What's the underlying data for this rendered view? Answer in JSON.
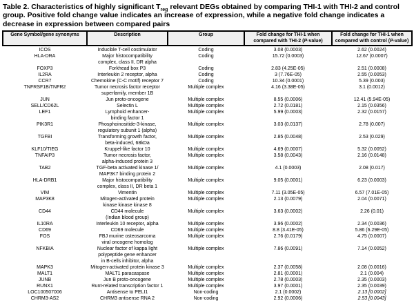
{
  "title": {
    "prefix": "Table 2. Characteristics of highly significant T",
    "subscript": "reg",
    "suffix": " relevant DEGs obtained by comparing THI-1 with THI-2 and control group. Positive fold change value indicates an increase of expression, while a negative fold change indicates a decrease in expression between compared pairs"
  },
  "table": {
    "columns": [
      {
        "label": "Gene Symbol/gene synonyms"
      },
      {
        "label": "Description"
      },
      {
        "label": "Group"
      },
      {
        "label_pre": "Fold change for THI-1 when compared with THI-2 (",
        "label_italic": "P",
        "label_post": "-value)"
      },
      {
        "label_pre": "Fold change for THI-1 when compared with control (",
        "label_italic": "P",
        "label_post": "-value)"
      }
    ],
    "rows": [
      {
        "gene": "ICOS",
        "description": [
          "Inducible T-cell costimulator"
        ],
        "group": "Coding",
        "fc_thi2": "3.08 (0.0003)",
        "fc_control": "2.62 (0.0024)"
      },
      {
        "gene": "HLA-DRA",
        "description": [
          "Major histocompatibility",
          "complex, class II, DR alpha"
        ],
        "group": "Coding",
        "fc_thi2": "15.72 (0.0003)",
        "fc_control": "12.67 (0.0007)"
      },
      {
        "gene": "FOXP3",
        "description": [
          "Forkhead box P3"
        ],
        "group": "Coding",
        "fc_thi2": "2.83 (4.25E-05)",
        "fc_control": "2.51 (0.0008)"
      },
      {
        "gene": "IL2RA",
        "description": [
          "Interleukin 2 receptor, alpha"
        ],
        "group": "Coding",
        "fc_thi2": "3 (7.76E-05)",
        "fc_control": "2.55 (0.0053)"
      },
      {
        "gene": "CCR7",
        "description": [
          "Chemokine (C-C motif) receptor 7"
        ],
        "group": "Coding",
        "fc_thi2": "10.34 (0.0001)",
        "fc_control": "5.39 (0.003)"
      },
      {
        "gene": "TNFRSF1B/TNFR2",
        "description": [
          "Tumor necrosis factor receptor",
          "superfamily, member 1B"
        ],
        "group": "Multiple complex",
        "fc_thi2": "4.16 (3.38E-05)",
        "fc_control": "3.1 (0.0012)"
      },
      {
        "gene": "JUN",
        "description": [
          "Jun proto-oncogene"
        ],
        "group": "Multiple complex",
        "fc_thi2": "8.55 (0.0006)",
        "fc_control": "12.41 (5.94E-05)"
      },
      {
        "gene": "SELL/CD62L",
        "description": [
          "Selectin L"
        ],
        "group": "Multiple complex",
        "fc_thi2": "2.72 (0.0181)",
        "fc_control": "2.15 (0.0356)"
      },
      {
        "gene": "LEF1",
        "description": [
          "Lymphoid enhancer-",
          "binding factor 1"
        ],
        "group": "Multiple complex",
        "fc_thi2": "5.99 (0.0003)",
        "fc_control": "2.32 (0.0157)"
      },
      {
        "gene": "PIK3R1",
        "description": [
          "Phosphoinositide-3-kinase,",
          "regulatory subunit 1 (alpha)"
        ],
        "group": "Multiple complex",
        "fc_thi2": "3.03 (0.0137)",
        "fc_control": "2.78 (0.007)"
      },
      {
        "gene": "TGFBI",
        "description": [
          "Transforming growth factor,",
          "beta-induced, 68kDa"
        ],
        "group": "Multiple complex",
        "fc_thi2": "2.85 (0.0048)",
        "fc_control": "2.53 (0.029)"
      },
      {
        "gene": "KLF10/TIEG",
        "description": [
          "Kruppel-like factor 10"
        ],
        "group": "Multiple complex",
        "fc_thi2": "4.69 (0.0007)",
        "fc_control": "5.32 (0.0052)"
      },
      {
        "gene": "TNFAIP3",
        "description": [
          "Tumor necrosis factor,",
          "alpha-induced protein 3"
        ],
        "group": "Multiple complex",
        "fc_thi2": "3.58 (0.0043)",
        "fc_control": "2.16 (0.0148)"
      },
      {
        "gene": "TAB2",
        "description": [
          "TGF-beta activated kinase 1/",
          "MAP3K7 binding protein 2"
        ],
        "group": "Multiple complex",
        "fc_thi2": "4.1 (0.0003)",
        "fc_control": "2.08 (0.017)"
      },
      {
        "gene": "HLA-DRB1",
        "description": [
          "Major histocompatibility",
          "complex, class II, DR beta 1"
        ],
        "group": "Multiple complex",
        "fc_thi2": "9.05 (0.0001)",
        "fc_control": "6.23 (0.0003)"
      },
      {
        "gene": "VIM",
        "description": [
          "Vimentin"
        ],
        "group": "Multiple complex",
        "fc_thi2": "7.11 (3.05E-05)",
        "fc_control": "6.57 (7.01E-05)"
      },
      {
        "gene": "MAP3K8",
        "description": [
          "Mitogen-activated protein",
          "kinase kinase kinase 8"
        ],
        "group": "Multiple complex",
        "fc_thi2": "2.13 (0.0079)",
        "fc_control": "2.04 (0.0071)"
      },
      {
        "gene": "CD44",
        "description": [
          "CD44 molecule",
          "(Indian blood group)"
        ],
        "group": "Multiple complex",
        "fc_thi2": "3.63 (0.0002)",
        "fc_control": "2.26 (0.01)"
      },
      {
        "gene": "IL10RA",
        "description": [
          "Interleukin 10 receptor, alpha"
        ],
        "group": "Multiple complex",
        "fc_thi2": "3.96 (0.0002)",
        "fc_control": "2.34 (0.0036)"
      },
      {
        "gene": "CD69",
        "description": [
          "CD69 molecule"
        ],
        "group": "Multiple complex",
        "fc_thi2": "8.8 (3.41E-05)",
        "fc_control": "5.86 (6.29E-05)"
      },
      {
        "gene": "FOS",
        "description": [
          "FBJ murine osteosarcoma",
          "viral oncogene homolog"
        ],
        "group": "Multiple complex",
        "fc_thi2": "2.76 (0.0179)",
        "fc_control": "4.75 (0.0007)"
      },
      {
        "gene": "NFKBIA",
        "description": [
          "Nuclear factor of kappa light",
          "polypeptide gene enhancer",
          "in B-cells inhibitor, alpha"
        ],
        "group": "Multiple complex",
        "fc_thi2": "7.86 (0.0091)",
        "fc_control": "7.14 (0.0052)"
      },
      {
        "gene": "MAPK3",
        "description": [
          "Mitogen-activated protein kinase 3"
        ],
        "group": "Multiple complex",
        "fc_thi2": "2.37 (0.0058)",
        "fc_control": "2.08 (0.0016)"
      },
      {
        "gene": "MALT1",
        "description": [
          "MALT1 paracaspase"
        ],
        "group": "Multiple complex",
        "fc_thi2": "2.81 (0.0001)",
        "fc_control": "2.1 (0.004)"
      },
      {
        "gene": "JUNB",
        "description": [
          "Jun B proto-oncogene"
        ],
        "group": "Multiple complex",
        "fc_thi2": "2.78 (0.0003)",
        "fc_control": "2.35 (0.0003)"
      },
      {
        "gene": "RUNX1",
        "description": [
          "Runt-related transcription factor 1"
        ],
        "group": "Multiple complex",
        "fc_thi2": "3.97 (0.0001)",
        "fc_control": "2.35 (0.0039)"
      },
      {
        "gene": "LOC100507006",
        "description": [
          "Antisense to PELI1"
        ],
        "group": "Non-coding",
        "fc_thi2": "2.1 (0.0002)",
        "fc_control": "2.13 [0.0002]",
        "control_italic": true
      },
      {
        "gene": "CHRM3-AS2",
        "description": [
          "CHRM3 antisense RNA 2"
        ],
        "group": "Non-coding",
        "fc_thi2": "2.92 (0.0006)",
        "fc_control": "2.53 [0.0043]",
        "control_italic": true
      }
    ]
  },
  "colors": {
    "header_bg": "#f0f0f0",
    "border": "#000000",
    "text": "#000000"
  }
}
